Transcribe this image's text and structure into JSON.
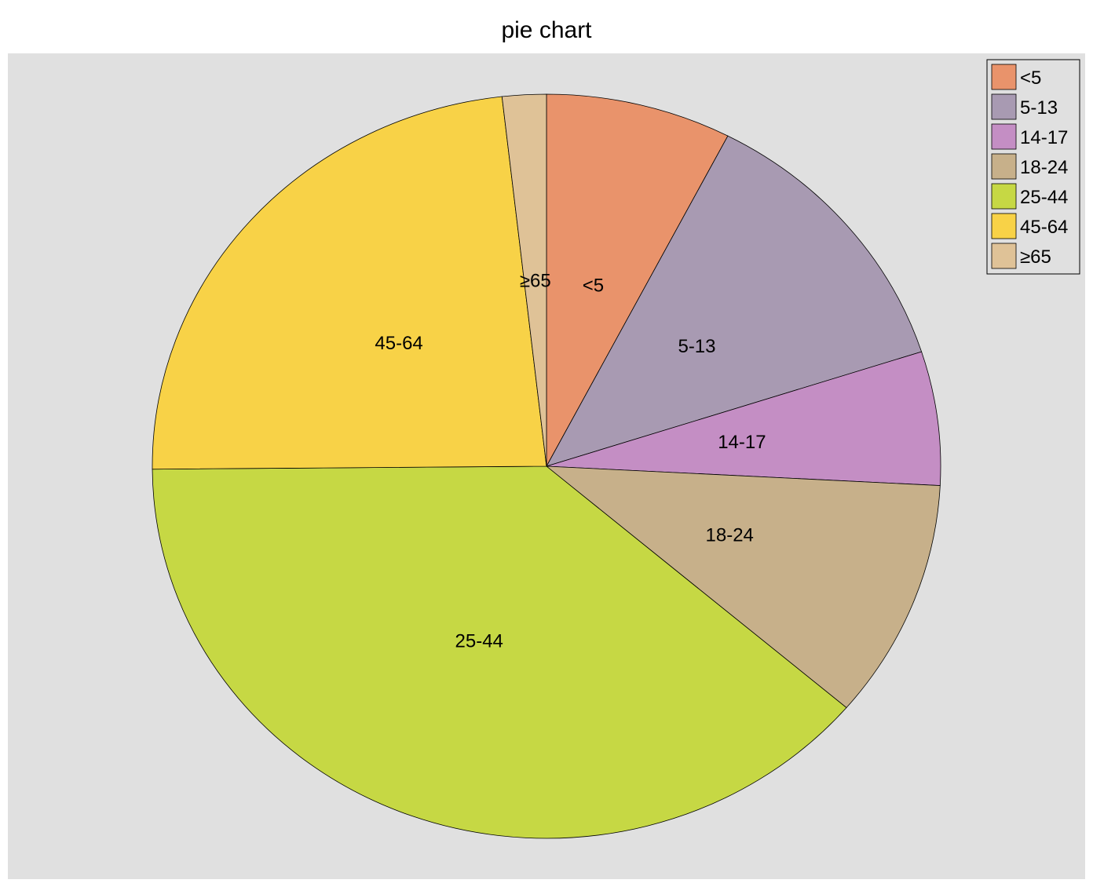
{
  "chart_data": {
    "type": "pie",
    "title": "pie chart",
    "categories": [
      "<5",
      "5-13",
      "14-17",
      "18-24",
      "25-44",
      "45-64",
      "≥65"
    ],
    "values": [
      7.6,
      12.4,
      5.8,
      10.4,
      38.6,
      23.3,
      1.8
    ],
    "colors": [
      "#E9936B",
      "#A89AB2",
      "#C48EC4",
      "#C7B08A",
      "#C6D844",
      "#F8D247",
      "#DFC297"
    ],
    "start_angle": "12 o'clock",
    "direction": "clockwise",
    "legend": "top-right",
    "background": "#E0E0E0"
  }
}
